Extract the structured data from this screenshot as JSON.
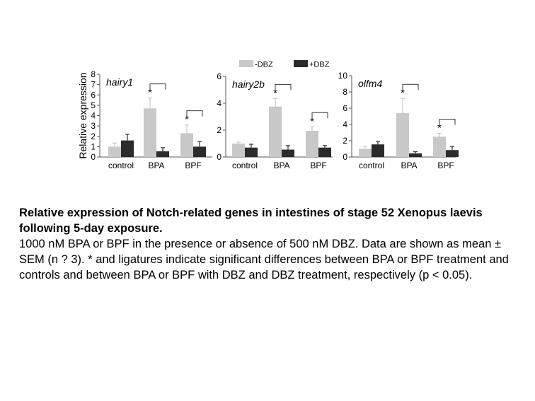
{
  "legend": {
    "entries": [
      {
        "label": "-DBZ",
        "color": "#c8c8c8"
      },
      {
        "label": "+DBZ",
        "color": "#2b2b2b"
      }
    ]
  },
  "caption": {
    "title": "Relative expression of Notch-related genes in intestines of stage 52 Xenopus laevis following 5-day exposure.",
    "body": "1000 nM BPA or BPF in the presence or absence of 500 nM DBZ. Data are shown as mean ± SEM (n ? 3). * and ligatures indicate significant differences between BPA or BPF treatment and controls and between BPA or BPF with DBZ and DBZ treatment, respectively (p < 0.05)."
  },
  "chart_data": [
    {
      "type": "bar",
      "title": "hairy1",
      "ylabel": "Relative expression",
      "ylim": [
        0,
        8
      ],
      "yticks": [
        0,
        1,
        2,
        3,
        4,
        5,
        6,
        7,
        8
      ],
      "categories": [
        "control",
        "BPA",
        "BPF"
      ],
      "series": [
        {
          "name": "-DBZ",
          "values": [
            1.0,
            4.7,
            2.3
          ],
          "errors": [
            0.35,
            1.0,
            0.8
          ]
        },
        {
          "name": "+DBZ",
          "values": [
            1.6,
            0.55,
            1.0
          ],
          "errors": [
            0.6,
            0.35,
            0.5
          ]
        }
      ],
      "asterisks": [
        1,
        2
      ],
      "brackets": [
        1,
        2
      ]
    },
    {
      "type": "bar",
      "title": "hairy2b",
      "ylabel": "",
      "ylim": [
        0,
        6
      ],
      "yticks": [
        0,
        2,
        4,
        6
      ],
      "categories": [
        "control",
        "BPA",
        "BPF"
      ],
      "series": [
        {
          "name": "-DBZ",
          "values": [
            1.0,
            3.75,
            1.95
          ],
          "errors": [
            0.1,
            0.6,
            0.3
          ]
        },
        {
          "name": "+DBZ",
          "values": [
            0.7,
            0.55,
            0.7
          ],
          "errors": [
            0.25,
            0.3,
            0.15
          ]
        }
      ],
      "asterisks": [
        1,
        2
      ],
      "brackets": [
        1,
        2
      ]
    },
    {
      "type": "bar",
      "title": "olfm4",
      "ylabel": "",
      "ylim": [
        0,
        10
      ],
      "yticks": [
        0,
        2,
        4,
        6,
        8,
        10
      ],
      "categories": [
        "control",
        "BPA",
        "BPF"
      ],
      "series": [
        {
          "name": "-DBZ",
          "values": [
            1.0,
            5.4,
            2.5
          ],
          "errors": [
            0.3,
            1.8,
            0.4
          ]
        },
        {
          "name": "+DBZ",
          "values": [
            1.55,
            0.45,
            0.85
          ],
          "errors": [
            0.35,
            0.2,
            0.45
          ]
        }
      ],
      "asterisks": [
        1,
        2
      ],
      "brackets": [
        1,
        2
      ]
    }
  ]
}
